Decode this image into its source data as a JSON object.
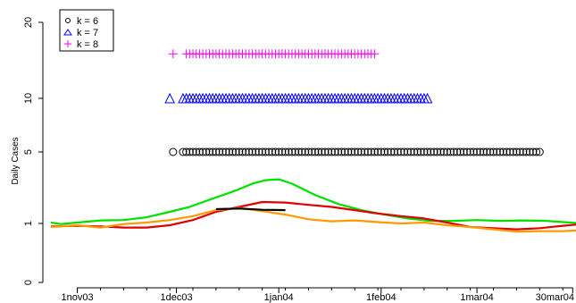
{
  "chart_data": {
    "type": "line",
    "ylabel": "Daily Cases",
    "y_scale": "log",
    "y_ticks": [
      {
        "value": 0,
        "label": "0"
      },
      {
        "value": 1,
        "label": "1"
      },
      {
        "value": 5,
        "label": "5"
      },
      {
        "value": 10,
        "label": "10"
      },
      {
        "value": 20,
        "label": "20"
      }
    ],
    "x_ticks": [
      {
        "date": "2003-11-01",
        "label": "1nov03"
      },
      {
        "date": "2003-12-01",
        "label": "1dec03"
      },
      {
        "date": "2004-01-01",
        "label": "1jan04"
      },
      {
        "date": "2004-02-01",
        "label": "1feb04"
      },
      {
        "date": "2004-03-01",
        "label": "1mar04"
      },
      {
        "date": "2004-03-30",
        "label": "30mar04"
      }
    ],
    "xlim": [
      "2003-10-24",
      "2004-03-31"
    ],
    "legend": {
      "placement": "top-left",
      "items": [
        {
          "label": "k = 6",
          "symbol": "circle",
          "color": "#000000"
        },
        {
          "label": "k = 7",
          "symbol": "triangle",
          "color": "#0000ff"
        },
        {
          "label": "k = 8",
          "symbol": "plus",
          "color": "#ff00ff"
        }
      ]
    },
    "marker_rows": [
      {
        "name": "k = 6",
        "symbol": "circle",
        "color": "#000000",
        "y": 5,
        "first": "2003-11-30",
        "start": "2003-12-03",
        "end": "2004-03-20"
      },
      {
        "name": "k = 7",
        "symbol": "triangle",
        "color": "#0000ff",
        "y": 10,
        "first": "2003-11-29",
        "start": "2003-12-03",
        "end": "2004-02-15"
      },
      {
        "name": "k = 8",
        "symbol": "plus",
        "color": "#ff00ff",
        "y": 15,
        "first": "2003-11-30",
        "start": "2003-12-04",
        "end": "2004-01-30"
      }
    ],
    "series": [
      {
        "color": "#00e000",
        "points": [
          [
            "2003-10-24",
            1.02
          ],
          [
            "2003-10-27",
            0.99
          ],
          [
            "2003-11-01",
            1.02
          ],
          [
            "2003-11-08",
            1.07
          ],
          [
            "2003-11-15",
            1.08
          ],
          [
            "2003-11-22",
            1.15
          ],
          [
            "2003-11-29",
            1.3
          ],
          [
            "2003-12-05",
            1.45
          ],
          [
            "2003-12-12",
            1.75
          ],
          [
            "2003-12-19",
            2.1
          ],
          [
            "2003-12-24",
            2.45
          ],
          [
            "2003-12-28",
            2.65
          ],
          [
            "2004-01-01",
            2.7
          ],
          [
            "2004-01-05",
            2.45
          ],
          [
            "2004-01-12",
            1.9
          ],
          [
            "2004-01-19",
            1.55
          ],
          [
            "2004-01-26",
            1.35
          ],
          [
            "2004-02-02",
            1.22
          ],
          [
            "2004-02-09",
            1.12
          ],
          [
            "2004-02-16",
            1.06
          ],
          [
            "2004-02-23",
            1.06
          ],
          [
            "2004-03-01",
            1.08
          ],
          [
            "2004-03-08",
            1.06
          ],
          [
            "2004-03-15",
            1.07
          ],
          [
            "2004-03-22",
            1.06
          ],
          [
            "2004-03-31",
            1.01
          ]
        ]
      },
      {
        "color": "#e00000",
        "points": [
          [
            "2003-10-24",
            0.95
          ],
          [
            "2003-11-01",
            0.96
          ],
          [
            "2003-11-08",
            0.95
          ],
          [
            "2003-11-15",
            0.93
          ],
          [
            "2003-11-22",
            0.93
          ],
          [
            "2003-11-29",
            0.97
          ],
          [
            "2003-12-06",
            1.08
          ],
          [
            "2003-12-13",
            1.3
          ],
          [
            "2003-12-20",
            1.45
          ],
          [
            "2003-12-27",
            1.62
          ],
          [
            "2004-01-03",
            1.6
          ],
          [
            "2004-01-10",
            1.52
          ],
          [
            "2004-01-17",
            1.45
          ],
          [
            "2004-01-24",
            1.35
          ],
          [
            "2004-01-31",
            1.25
          ],
          [
            "2004-02-07",
            1.18
          ],
          [
            "2004-02-14",
            1.12
          ],
          [
            "2004-02-21",
            1.02
          ],
          [
            "2004-02-28",
            0.94
          ],
          [
            "2004-03-06",
            0.92
          ],
          [
            "2004-03-13",
            0.9
          ],
          [
            "2004-03-20",
            0.92
          ],
          [
            "2004-03-27",
            0.96
          ],
          [
            "2004-03-31",
            0.98
          ]
        ]
      },
      {
        "color": "#ff9900",
        "points": [
          [
            "2003-10-24",
            0.94
          ],
          [
            "2003-11-01",
            0.97
          ],
          [
            "2003-11-08",
            0.93
          ],
          [
            "2003-11-15",
            0.99
          ],
          [
            "2003-11-22",
            1.02
          ],
          [
            "2003-11-29",
            1.08
          ],
          [
            "2003-12-06",
            1.18
          ],
          [
            "2003-12-13",
            1.35
          ],
          [
            "2003-12-20",
            1.42
          ],
          [
            "2003-12-27",
            1.32
          ],
          [
            "2004-01-03",
            1.22
          ],
          [
            "2004-01-10",
            1.1
          ],
          [
            "2004-01-17",
            1.05
          ],
          [
            "2004-01-24",
            1.07
          ],
          [
            "2004-01-31",
            1.03
          ],
          [
            "2004-02-07",
            1.0
          ],
          [
            "2004-02-14",
            1.02
          ],
          [
            "2004-02-21",
            0.97
          ],
          [
            "2004-02-28",
            0.94
          ],
          [
            "2004-03-06",
            0.9
          ],
          [
            "2004-03-13",
            0.86
          ],
          [
            "2004-03-20",
            0.87
          ],
          [
            "2004-03-27",
            0.87
          ],
          [
            "2004-03-31",
            0.88
          ]
        ]
      },
      {
        "color": "#000000",
        "points": [
          [
            "2003-12-13",
            1.38
          ],
          [
            "2003-12-20",
            1.4
          ],
          [
            "2003-12-27",
            1.36
          ],
          [
            "2004-01-03",
            1.35
          ]
        ]
      }
    ]
  }
}
